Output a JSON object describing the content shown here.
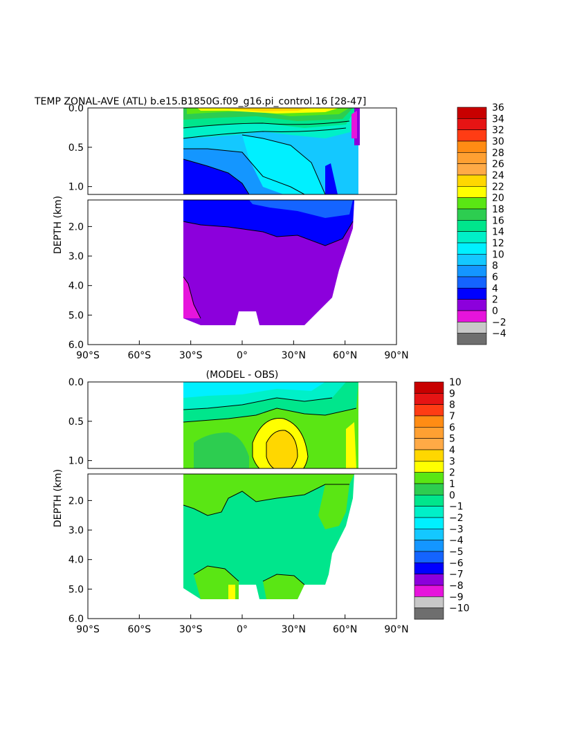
{
  "figure": {
    "title": "TEMP ZONAL-AVE (ATL) b.e15.B1850G.f09_g16.pi_control.16 [28-47]",
    "diff_title": "(MODEL - OBS)",
    "ylabel": "DEPTH (km)"
  },
  "chart_data": [
    {
      "type": "heatmap",
      "name": "temperature",
      "title": "TEMP ZONAL-AVE (ATL) b.e15.B1850G.f09_g16.pi_control.16 [28-47]",
      "ylabel": "DEPTH (km)",
      "xlim": [
        -90,
        90
      ],
      "xticks": [
        "90°S",
        "60°S",
        "30°S",
        "0°",
        "30°N",
        "60°N",
        "90°N"
      ],
      "ylim_upper": [
        0.0,
        1.1
      ],
      "ylim_lower": [
        1.1,
        6.0
      ],
      "yticks_upper": [
        "0.0",
        "0.5",
        "1.0"
      ],
      "yticks_lower": [
        "2.0",
        "3.0",
        "4.0",
        "5.0",
        "6.0"
      ],
      "lat_range": [
        -34,
        66
      ],
      "colorbar_levels": [
        "36",
        "34",
        "32",
        "30",
        "28",
        "26",
        "24",
        "22",
        "20",
        "18",
        "16",
        "14",
        "12",
        "10",
        "8",
        "6",
        "4",
        "2",
        "0",
        "−2",
        "−4"
      ],
      "colorbar_colors": [
        "#c80000",
        "#e61414",
        "#ff3c14",
        "#ff8c14",
        "#ffa032",
        "#ffaa46",
        "#ffd700",
        "#ffff00",
        "#5ae614",
        "#2dcd50",
        "#00e68c",
        "#00f0c8",
        "#00f0ff",
        "#14c8ff",
        "#1496ff",
        "#1464ff",
        "#0000ff",
        "#8c00dc",
        "#e614dc",
        "#c8c8c8",
        "#6e6e6e"
      ]
    },
    {
      "type": "heatmap",
      "name": "difference",
      "title": "(MODEL - OBS)",
      "ylabel": "DEPTH (km)",
      "xlim": [
        -90,
        90
      ],
      "xticks": [
        "90°S",
        "60°S",
        "30°S",
        "0°",
        "30°N",
        "60°N",
        "90°N"
      ],
      "ylim_upper": [
        0.0,
        1.1
      ],
      "ylim_lower": [
        1.1,
        6.0
      ],
      "yticks_upper": [
        "0.0",
        "0.5",
        "1.0"
      ],
      "yticks_lower": [
        "2.0",
        "3.0",
        "4.0",
        "5.0",
        "6.0"
      ],
      "lat_range": [
        -34,
        66
      ],
      "colorbar_levels": [
        "10",
        "9",
        "8",
        "7",
        "6",
        "5",
        "4",
        "3",
        "2",
        "1",
        "0",
        "−1",
        "−2",
        "−3",
        "−4",
        "−5",
        "−6",
        "−7",
        "−8",
        "−9",
        "−10"
      ],
      "colorbar_colors": [
        "#c80000",
        "#e61414",
        "#ff3c14",
        "#ff8c14",
        "#ffa032",
        "#ffaa46",
        "#ffd700",
        "#ffff00",
        "#5ae614",
        "#2dcd50",
        "#00e68c",
        "#00f0c8",
        "#00f0ff",
        "#14c8ff",
        "#1496ff",
        "#1464ff",
        "#0000ff",
        "#8c00dc",
        "#e614dc",
        "#c8c8c8",
        "#6e6e6e"
      ]
    }
  ]
}
